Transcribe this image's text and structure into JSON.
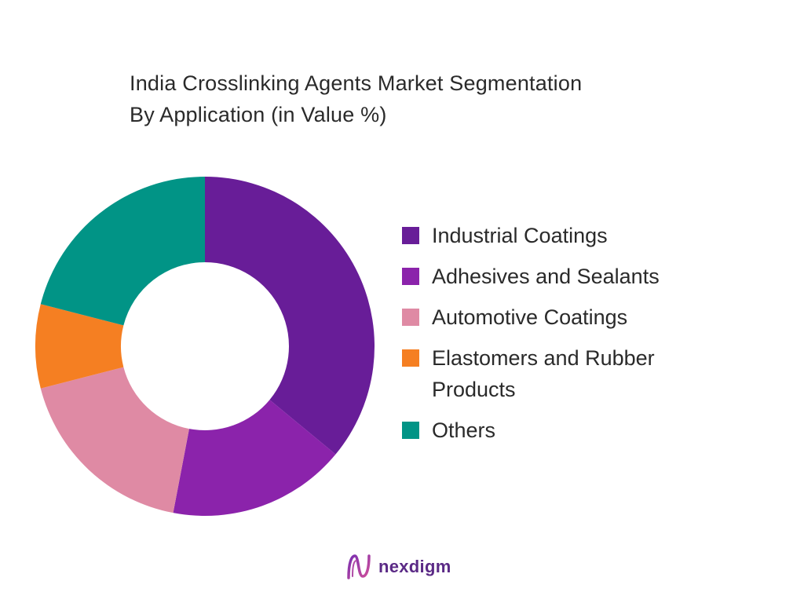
{
  "chart_data": {
    "type": "pie",
    "title": "India Crosslinking Agents Market Segmentation By Application (in Value %)",
    "title_lines": [
      "India Crosslinking Agents Market Segmentation",
      "By Application (in Value %)"
    ],
    "donut": true,
    "categories": [
      "Industrial Coatings",
      "Adhesives and Sealants",
      "Automotive Coatings",
      "Elastomers and Rubber Products",
      "Others"
    ],
    "values": [
      36,
      17,
      18,
      8,
      21
    ],
    "colors": [
      "#681d98",
      "#8b23ab",
      "#df8aa4",
      "#f57f22",
      "#019486"
    ],
    "legend": "right"
  },
  "brand": {
    "name": "nexdigm",
    "logo_icon": "nexdigm-logo-icon"
  }
}
